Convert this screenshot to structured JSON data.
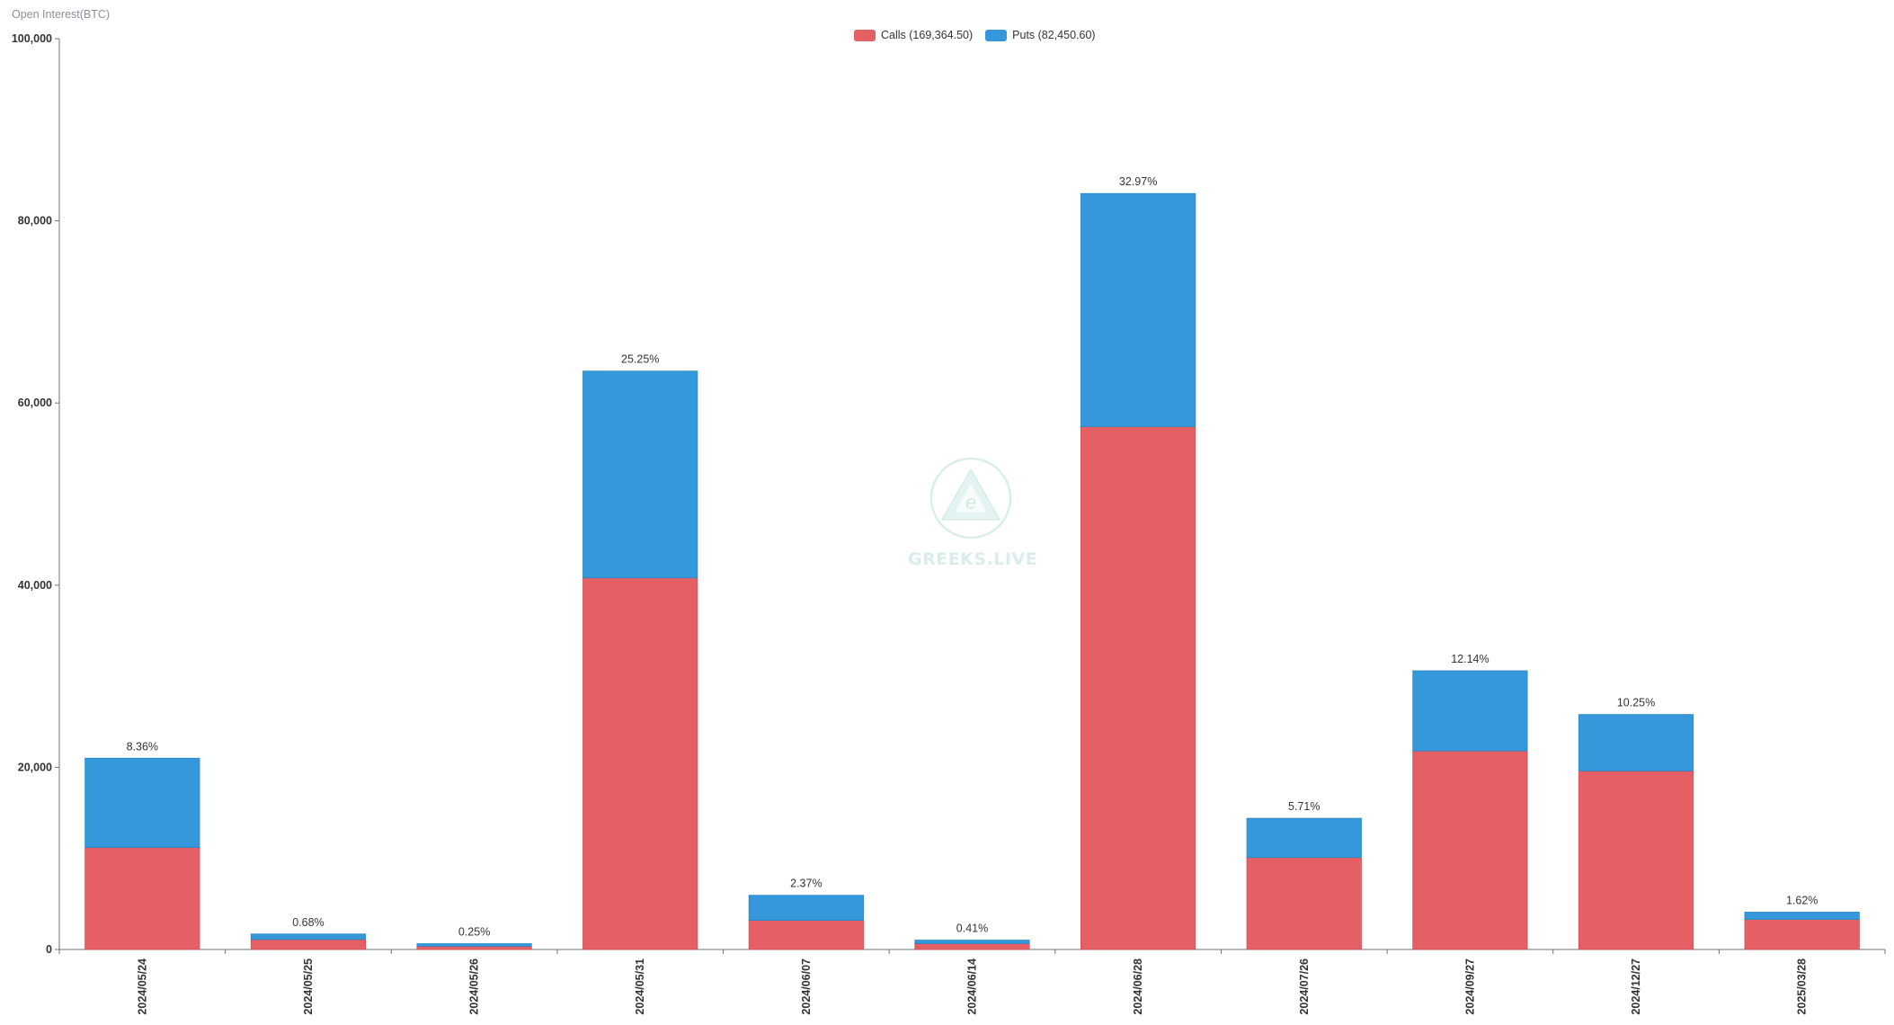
{
  "chart_data": {
    "type": "bar",
    "stacked": true,
    "ylabel": "Open Interest(BTC)",
    "ylim": [
      0,
      100000
    ],
    "yticks": [
      "0",
      "20,000",
      "40,000",
      "60,000",
      "80,000",
      "100,000"
    ],
    "ytick_values": [
      0,
      20000,
      40000,
      60000,
      80000,
      100000
    ],
    "legend_placement": "top-center",
    "grid": false,
    "categories": [
      "2024/05/24",
      "2024/05/25",
      "2024/05/26",
      "2024/05/31",
      "2024/06/07",
      "2024/06/14",
      "2024/06/28",
      "2024/07/26",
      "2024/09/27",
      "2024/12/27",
      "2025/03/28"
    ],
    "series": [
      {
        "name": "Calls (169,364.50)",
        "color": "#e46065",
        "values": [
          11200,
          1100,
          350,
          40800,
          3200,
          650,
          57400,
          10100,
          21800,
          19600,
          3300
        ]
      },
      {
        "name": "Puts (82,450.60)",
        "color": "#3598db",
        "values": [
          9800,
          600,
          290,
          22700,
          2750,
          380,
          25600,
          4300,
          8800,
          6200,
          800
        ]
      }
    ],
    "data_labels": [
      "8.36%",
      "0.68%",
      "0.25%",
      "25.25%",
      "2.37%",
      "0.41%",
      "32.97%",
      "5.71%",
      "12.14%",
      "10.25%",
      "1.62%"
    ]
  },
  "watermark": {
    "text": "GREEKS.LIVE",
    "logo_icon": "greeks-live-logo-icon"
  }
}
